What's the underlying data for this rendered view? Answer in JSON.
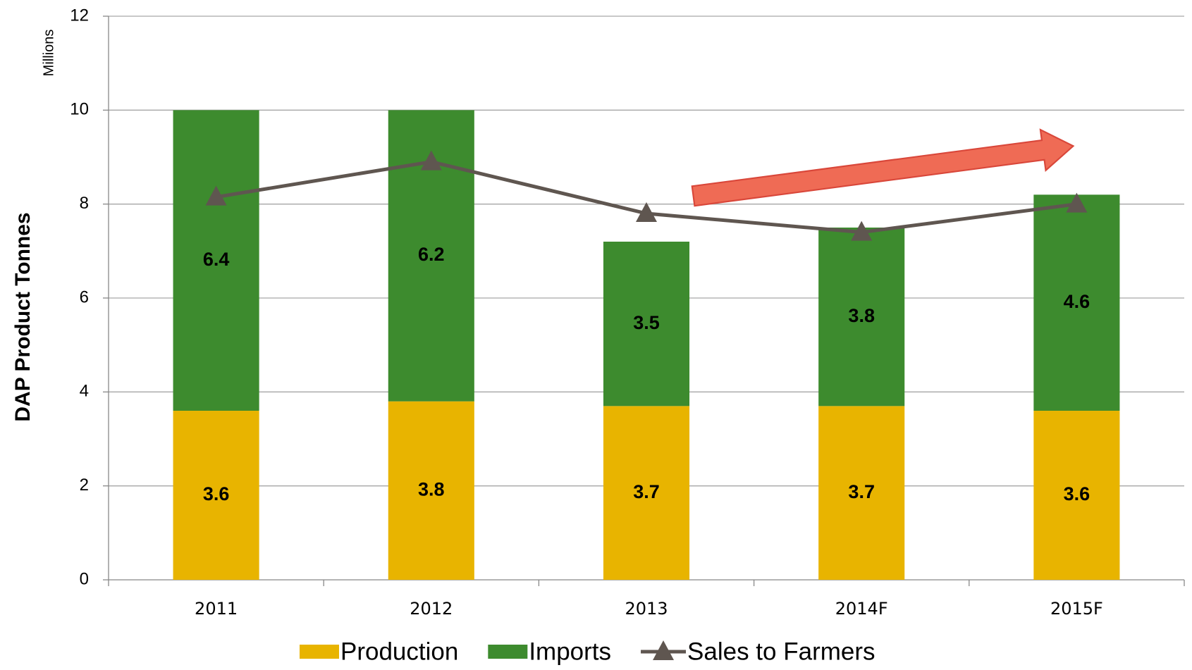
{
  "chart_data": {
    "type": "bar",
    "stacked": true,
    "y_label": "DAP Product Tonnes",
    "y_units": "Millions",
    "categories": [
      "2011",
      "2012",
      "2013",
      "2014F",
      "2015F"
    ],
    "series": [
      {
        "name": "Production",
        "color": "#e8b400",
        "values": [
          3.6,
          3.8,
          3.7,
          3.7,
          3.6
        ]
      },
      {
        "name": "Imports",
        "color": "#3d8b2e",
        "values": [
          6.4,
          6.2,
          3.5,
          3.8,
          4.6
        ]
      },
      {
        "name": "Sales to Farmers",
        "color": "#5f5650",
        "type": "line",
        "values": [
          8.15,
          8.9,
          7.8,
          7.4,
          8.0
        ]
      }
    ],
    "ylim": [
      0,
      12
    ],
    "yticks": [
      0,
      2,
      4,
      6,
      8,
      10,
      12
    ],
    "grid": true
  }
}
